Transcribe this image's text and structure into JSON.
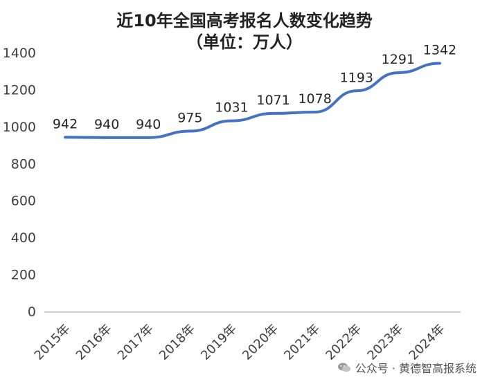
{
  "chart_data": {
    "type": "line",
    "title": "近10年全国高考报名人数变化趋势",
    "subtitle": "（单位：万人）",
    "categories": [
      "2015年",
      "2016年",
      "2017年",
      "2018年",
      "2019年",
      "2020年",
      "2021年",
      "2022年",
      "2023年",
      "2024年"
    ],
    "series": [
      {
        "values": [
          942,
          940,
          940,
          975,
          1031,
          1071,
          1078,
          1193,
          1291,
          1342
        ]
      }
    ],
    "data_labels": [
      "942",
      "940",
      "940",
      "975",
      "1031",
      "1071",
      "1078",
      "1193",
      "1291",
      "1342"
    ],
    "yticks": [
      "0",
      "200",
      "400",
      "600",
      "800",
      "1000",
      "1200",
      "1400"
    ],
    "ylim": [
      0,
      1400
    ],
    "grid": false,
    "line_color": "#4472C4"
  },
  "watermark": {
    "text": "公众号 · 黄德智高报系统",
    "icon": "wechat-icon"
  }
}
